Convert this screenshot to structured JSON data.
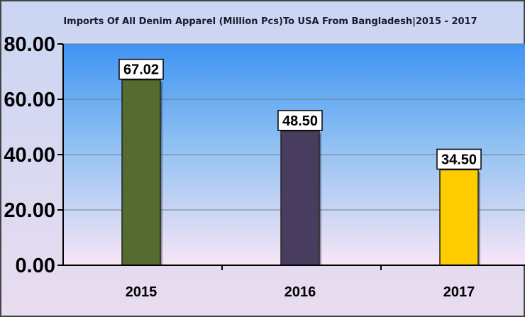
{
  "chart_data": {
    "type": "bar",
    "title": "Imports Of All Denim Apparel (Million Pcs)To USA From Bangladesh|2015 - 2017",
    "categories": [
      "2015",
      "2016",
      "2017"
    ],
    "values": [
      67.02,
      48.5,
      34.5
    ],
    "data_labels": [
      "67.02",
      "48.50",
      "34.50"
    ],
    "bar_colors": [
      "#556b2f",
      "#483d5e",
      "#ffcc00"
    ],
    "ylim": [
      0,
      80
    ],
    "yticks": [
      0,
      20,
      40,
      60,
      80
    ],
    "ytick_labels": [
      "0.00",
      "20.00",
      "40.00",
      "60.00",
      "80.00"
    ],
    "xlabel": "",
    "ylabel": "",
    "grid": true,
    "legend": "none"
  }
}
